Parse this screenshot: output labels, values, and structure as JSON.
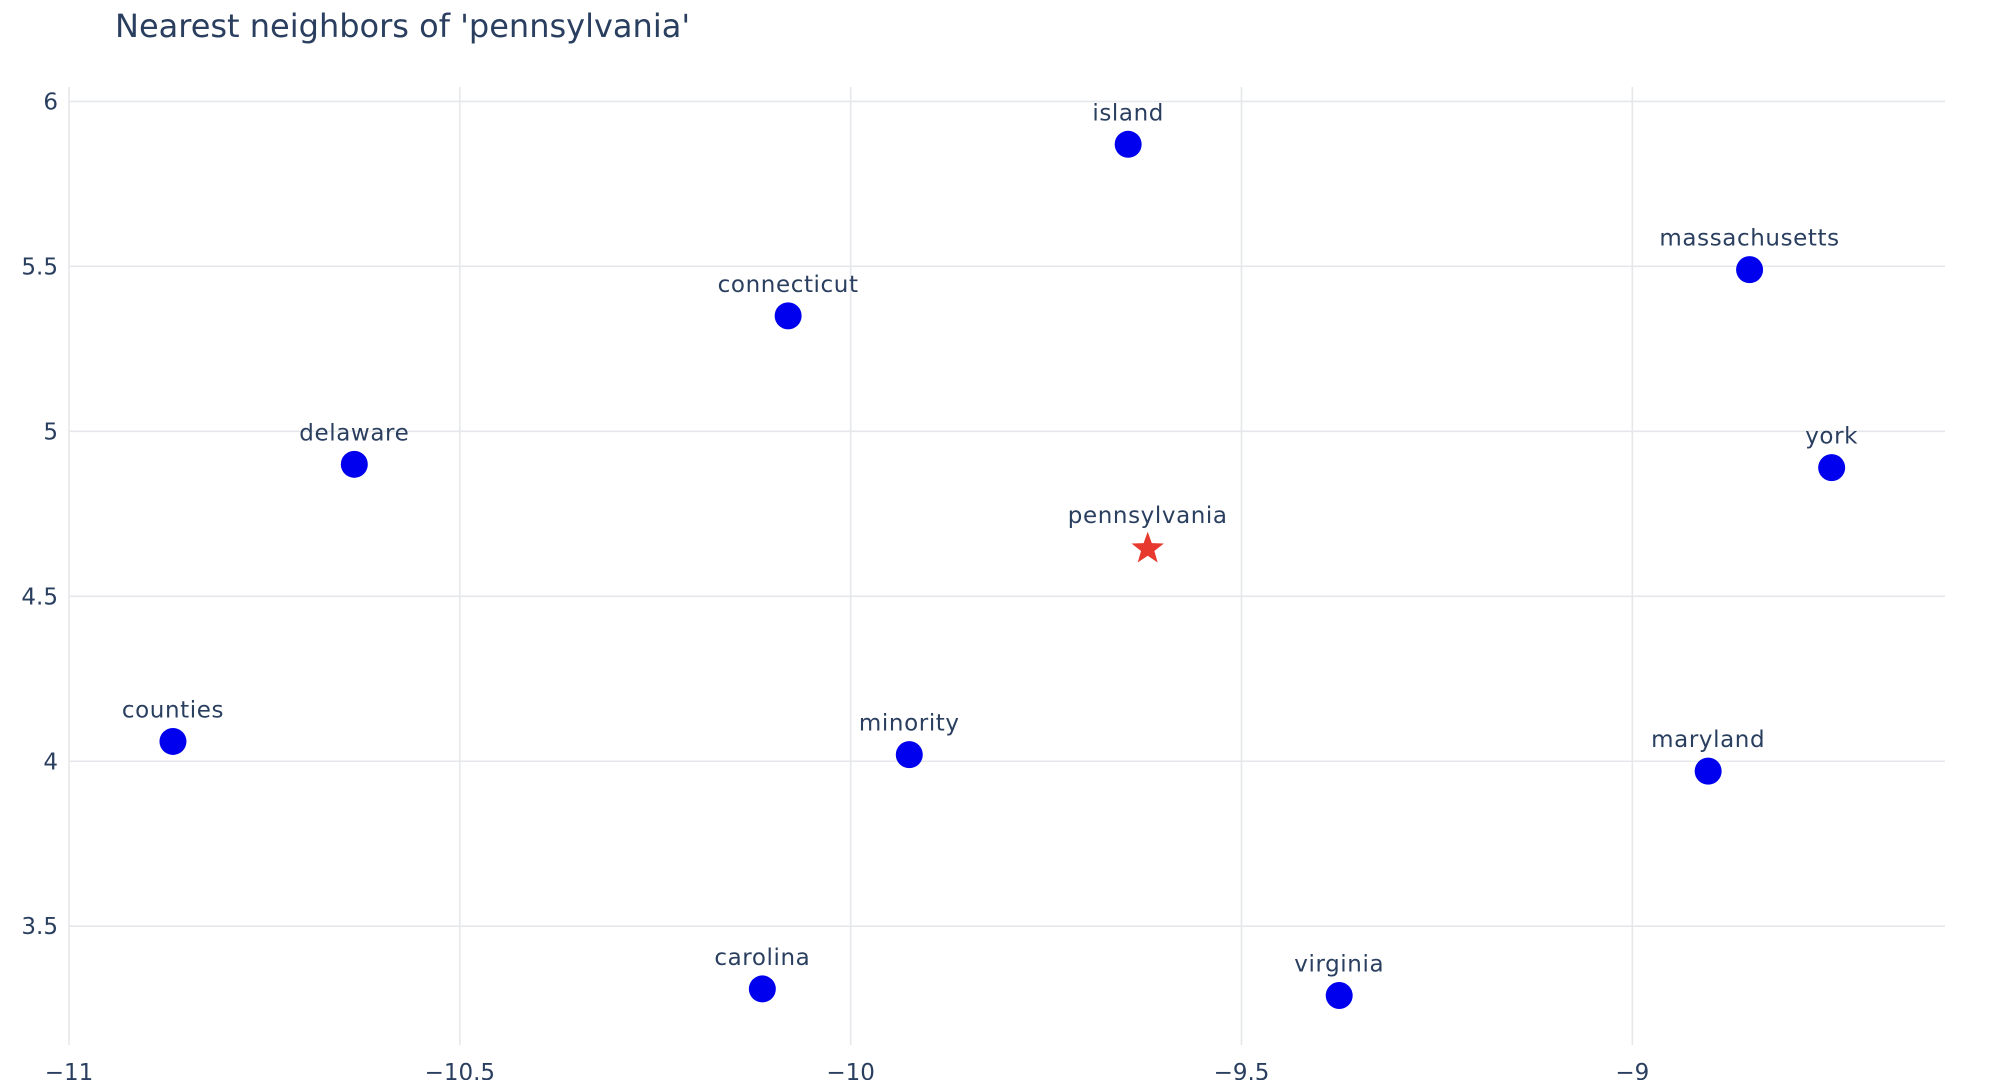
{
  "chart_data": {
    "type": "scatter",
    "title": "Nearest neighbors of 'pennsylvania'",
    "xlabel": "",
    "ylabel": "",
    "xlim": [
      -11,
      -8.6
    ],
    "ylim": [
      3.14,
      6.08
    ],
    "xticks": [
      -11,
      -10.5,
      -10,
      -9.5,
      -9
    ],
    "xtick_labels": [
      "−11",
      "−10.5",
      "−10",
      "−9.5",
      "−9"
    ],
    "yticks": [
      3.5,
      4,
      4.5,
      5,
      5.5,
      6
    ],
    "ytick_labels": [
      "3.5",
      "4",
      "4.5",
      "5",
      "5.5",
      "6"
    ],
    "grid": true,
    "legend": "none",
    "query": {
      "label": "pennsylvania",
      "x": -9.62,
      "y": 4.65,
      "marker": "star",
      "color": "#e8392f"
    },
    "neighbors": {
      "marker": "circle",
      "color": "#0000ee",
      "points": [
        {
          "label": "island",
          "x": -9.645,
          "y": 5.87
        },
        {
          "label": "massachusetts",
          "x": -8.85,
          "y": 5.49
        },
        {
          "label": "connecticut",
          "x": -10.08,
          "y": 5.35
        },
        {
          "label": "delaware",
          "x": -10.635,
          "y": 4.9
        },
        {
          "label": "york",
          "x": -8.745,
          "y": 4.89
        },
        {
          "label": "counties",
          "x": -10.867,
          "y": 4.06
        },
        {
          "label": "minority",
          "x": -9.925,
          "y": 4.02
        },
        {
          "label": "maryland",
          "x": -8.903,
          "y": 3.97
        },
        {
          "label": "carolina",
          "x": -10.113,
          "y": 3.31
        },
        {
          "label": "virginia",
          "x": -9.375,
          "y": 3.29
        }
      ]
    }
  }
}
